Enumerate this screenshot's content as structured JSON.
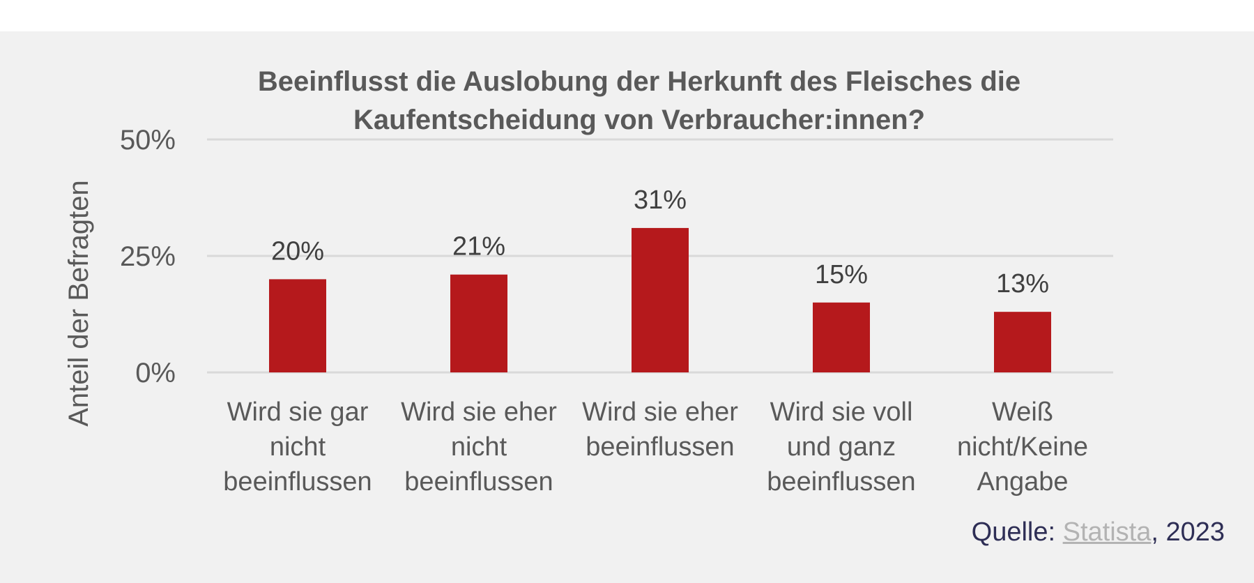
{
  "chart_data": {
    "type": "bar",
    "title": [
      "Beeinflusst die Auslobung der Herkunft des Fleisches die",
      "Kaufentscheidung von Verbraucher:innen?"
    ],
    "ylabel": "Anteil der Befragten",
    "xlabel": "",
    "ylim": [
      0,
      50
    ],
    "yticks": [
      0,
      25,
      50
    ],
    "ytick_labels": [
      "0%",
      "25%",
      "50%"
    ],
    "categories": [
      [
        "Wird sie gar",
        "nicht",
        "beeinflussen"
      ],
      [
        "Wird sie eher",
        "nicht",
        "beeinflussen"
      ],
      [
        "Wird sie eher",
        "beeinflussen"
      ],
      [
        "Wird sie voll",
        "und ganz",
        "beeinflussen"
      ],
      [
        "Weiß",
        "nicht/Keine",
        "Angabe"
      ]
    ],
    "values": [
      20,
      21,
      31,
      15,
      13
    ],
    "value_labels": [
      "20%",
      "21%",
      "31%",
      "15%",
      "13%"
    ],
    "bar_color": "#b5191c",
    "grid": true,
    "gridline_color": "#d9d9d9"
  },
  "source": {
    "prefix": "Quelle: ",
    "link_text": "Statista",
    "suffix": ", 2023"
  }
}
